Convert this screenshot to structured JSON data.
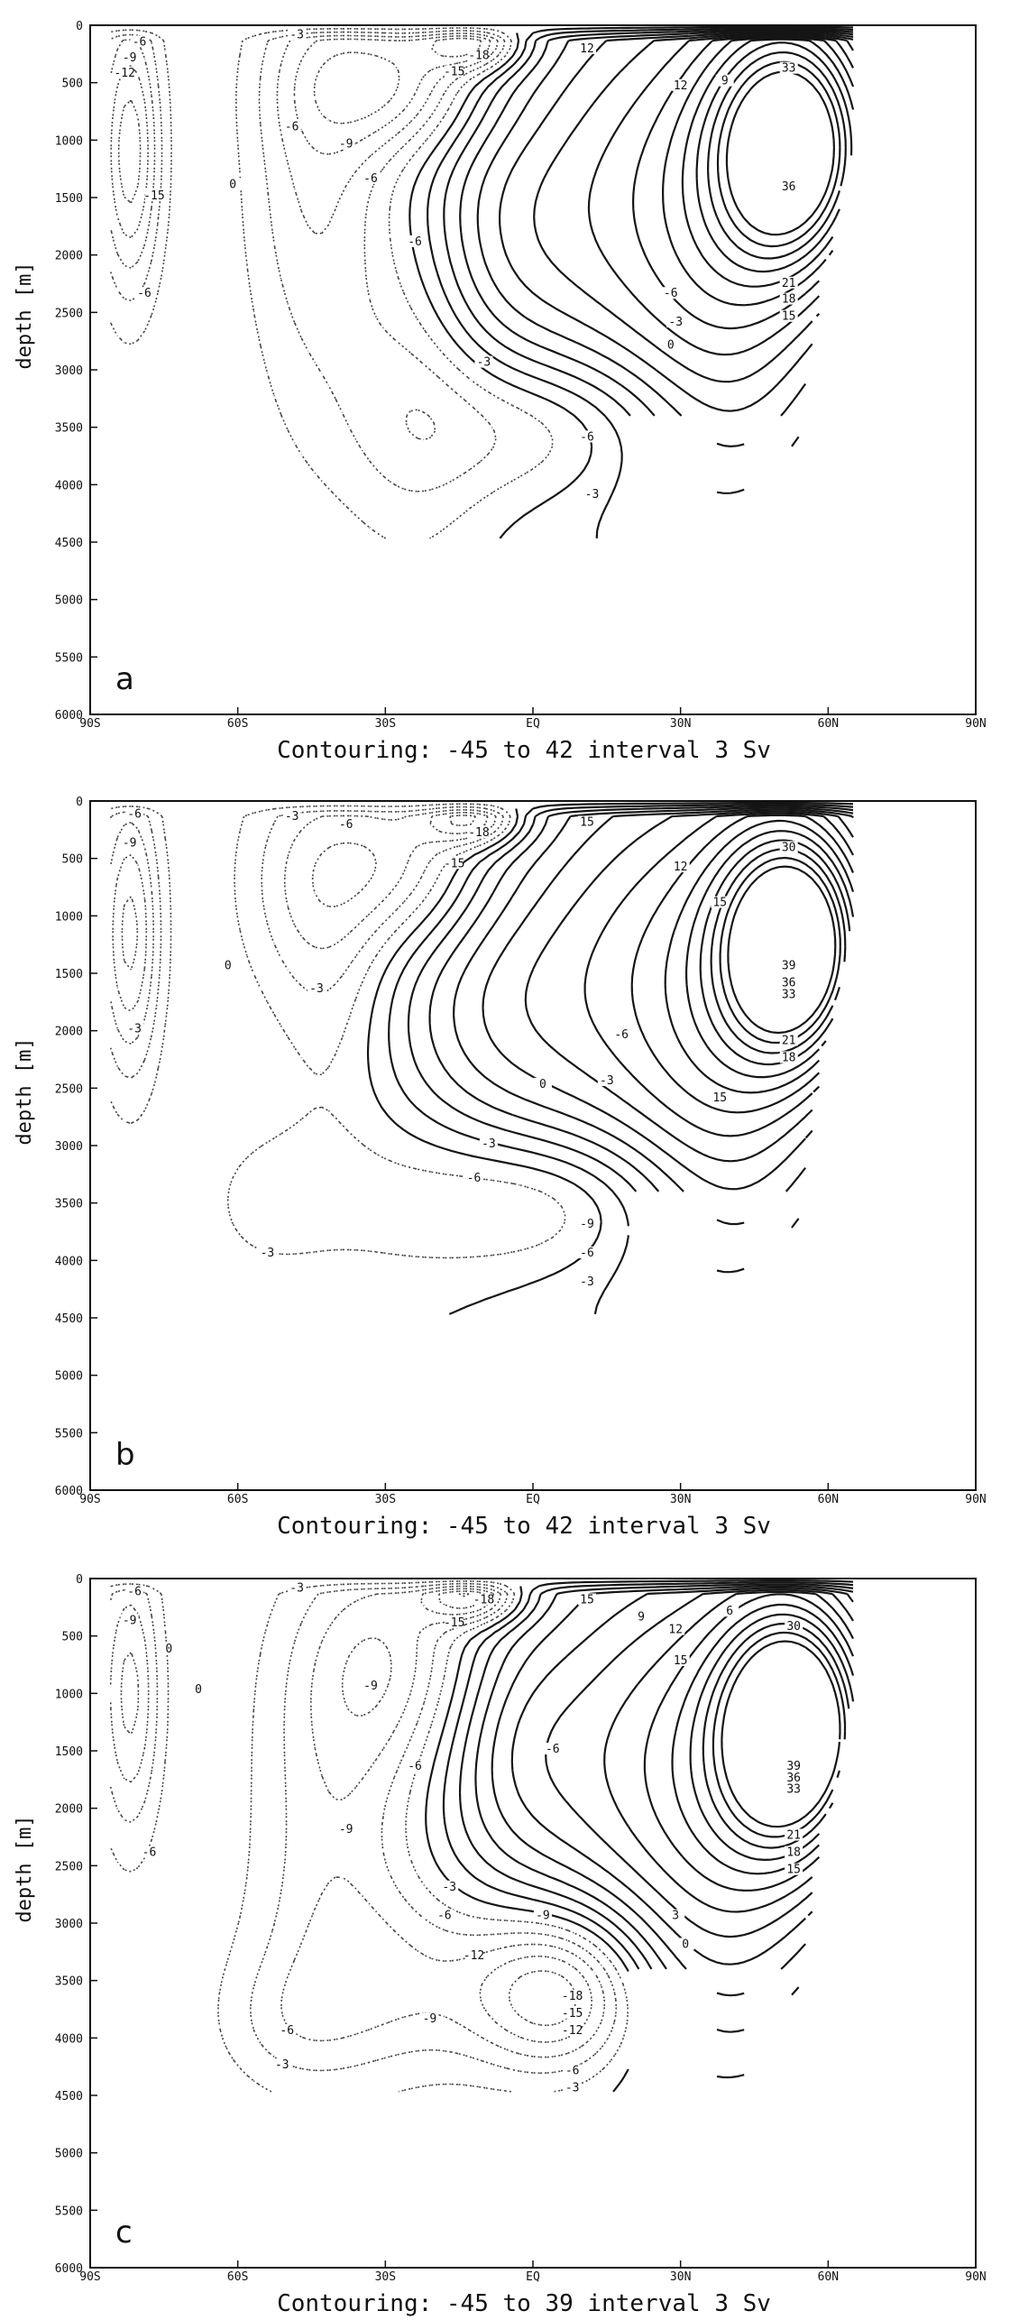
{
  "chart_data": [
    {
      "type": "contour",
      "panel_label": "a",
      "xlabel": "",
      "ylabel": "depth [m]",
      "caption": "Contouring: -45 to 42 interval 3 Sv",
      "xlim": [
        -90,
        90
      ],
      "ylim": [
        6000,
        0
      ],
      "x_ticks": [
        -90,
        -60,
        -30,
        0,
        30,
        60,
        90
      ],
      "x_tick_labels": [
        "90S",
        "60S",
        "30S",
        "EQ",
        "30N",
        "60N",
        "90N"
      ],
      "y_ticks": [
        0,
        500,
        1000,
        1500,
        2000,
        2500,
        3000,
        3500,
        4000,
        4500,
        5000,
        5500,
        6000
      ],
      "contour_min": -45,
      "contour_max": 42,
      "contour_interval": 3,
      "units": "Sv",
      "contour_labels": [
        {
          "lat": -80,
          "depth": 160,
          "value": "-6"
        },
        {
          "lat": -82,
          "depth": 300,
          "value": "-9"
        },
        {
          "lat": -83,
          "depth": 430,
          "value": "-12"
        },
        {
          "lat": -77,
          "depth": 1500,
          "value": "-15"
        },
        {
          "lat": -79,
          "depth": 2350,
          "value": "-6"
        },
        {
          "lat": -61,
          "depth": 1400,
          "value": "0"
        },
        {
          "lat": -48,
          "depth": 100,
          "value": "-3"
        },
        {
          "lat": -49,
          "depth": 900,
          "value": "-6"
        },
        {
          "lat": -38,
          "depth": 1050,
          "value": "-9"
        },
        {
          "lat": -33,
          "depth": 1350,
          "value": "-6"
        },
        {
          "lat": -16,
          "depth": 420,
          "value": "-15"
        },
        {
          "lat": -11,
          "depth": 280,
          "value": "-18"
        },
        {
          "lat": -24,
          "depth": 1900,
          "value": "-6"
        },
        {
          "lat": -10,
          "depth": 2950,
          "value": "-3"
        },
        {
          "lat": 11,
          "depth": 3600,
          "value": "-6"
        },
        {
          "lat": 12,
          "depth": 4100,
          "value": "-3"
        },
        {
          "lat": 11,
          "depth": 220,
          "value": "12"
        },
        {
          "lat": 30,
          "depth": 540,
          "value": "12"
        },
        {
          "lat": 39,
          "depth": 500,
          "value": "9"
        },
        {
          "lat": 52,
          "depth": 1420,
          "value": "36"
        },
        {
          "lat": 52,
          "depth": 390,
          "value": "33"
        },
        {
          "lat": 52,
          "depth": 2260,
          "value": "21"
        },
        {
          "lat": 52,
          "depth": 2400,
          "value": "18"
        },
        {
          "lat": 52,
          "depth": 2550,
          "value": "15"
        },
        {
          "lat": 28,
          "depth": 2350,
          "value": "-6"
        },
        {
          "lat": 29,
          "depth": 2600,
          "value": "-3"
        },
        {
          "lat": 28,
          "depth": 2800,
          "value": "0"
        }
      ]
    },
    {
      "type": "contour",
      "panel_label": "b",
      "xlabel": "",
      "ylabel": "depth [m]",
      "caption": "Contouring: -45 to 42 interval 3 Sv",
      "xlim": [
        -90,
        90
      ],
      "ylim": [
        6000,
        0
      ],
      "x_ticks": [
        -90,
        -60,
        -30,
        0,
        30,
        60,
        90
      ],
      "x_tick_labels": [
        "90S",
        "60S",
        "30S",
        "EQ",
        "30N",
        "60N",
        "90N"
      ],
      "y_ticks": [
        0,
        500,
        1000,
        1500,
        2000,
        2500,
        3000,
        3500,
        4000,
        4500,
        5000,
        5500,
        6000
      ],
      "contour_min": -45,
      "contour_max": 42,
      "contour_interval": 3,
      "units": "Sv",
      "contour_labels": [
        {
          "lat": -81,
          "depth": 130,
          "value": "-6"
        },
        {
          "lat": -82,
          "depth": 380,
          "value": "-9"
        },
        {
          "lat": -81,
          "depth": 2000,
          "value": "-3"
        },
        {
          "lat": -62,
          "depth": 1450,
          "value": "0"
        },
        {
          "lat": -49,
          "depth": 150,
          "value": "-3"
        },
        {
          "lat": -38,
          "depth": 220,
          "value": "-6"
        },
        {
          "lat": -44,
          "depth": 1650,
          "value": "-3"
        },
        {
          "lat": -16,
          "depth": 560,
          "value": "-15"
        },
        {
          "lat": -11,
          "depth": 290,
          "value": "-18"
        },
        {
          "lat": -9,
          "depth": 3000,
          "value": "-3"
        },
        {
          "lat": -12,
          "depth": 3300,
          "value": "-6"
        },
        {
          "lat": 11,
          "depth": 3700,
          "value": "-9"
        },
        {
          "lat": 11,
          "depth": 3950,
          "value": "-6"
        },
        {
          "lat": 11,
          "depth": 4200,
          "value": "-3"
        },
        {
          "lat": -54,
          "depth": 3950,
          "value": "-3"
        },
        {
          "lat": 11,
          "depth": 200,
          "value": "15"
        },
        {
          "lat": 30,
          "depth": 590,
          "value": "12"
        },
        {
          "lat": 38,
          "depth": 900,
          "value": "15"
        },
        {
          "lat": 52,
          "depth": 1450,
          "value": "39"
        },
        {
          "lat": 52,
          "depth": 1600,
          "value": "36"
        },
        {
          "lat": 52,
          "depth": 1700,
          "value": "33"
        },
        {
          "lat": 52,
          "depth": 420,
          "value": "30"
        },
        {
          "lat": 52,
          "depth": 2100,
          "value": "21"
        },
        {
          "lat": 52,
          "depth": 2250,
          "value": "18"
        },
        {
          "lat": 38,
          "depth": 2600,
          "value": "15"
        },
        {
          "lat": 18,
          "depth": 2050,
          "value": "-6"
        },
        {
          "lat": 15,
          "depth": 2450,
          "value": "-3"
        },
        {
          "lat": 2,
          "depth": 2480,
          "value": "0"
        }
      ]
    },
    {
      "type": "contour",
      "panel_label": "c",
      "xlabel": "",
      "ylabel": "depth [m]",
      "caption": "Contouring: -45 to 39 interval 3 Sv",
      "xlim": [
        -90,
        90
      ],
      "ylim": [
        6000,
        0
      ],
      "x_ticks": [
        -90,
        -60,
        -30,
        0,
        30,
        60,
        90
      ],
      "x_tick_labels": [
        "90S",
        "60S",
        "30S",
        "EQ",
        "30N",
        "60N",
        "90N"
      ],
      "y_ticks": [
        0,
        500,
        1000,
        1500,
        2000,
        2500,
        3000,
        3500,
        4000,
        4500,
        5000,
        5500,
        6000
      ],
      "contour_min": -45,
      "contour_max": 39,
      "contour_interval": 3,
      "units": "Sv",
      "contour_labels": [
        {
          "lat": -81,
          "depth": 130,
          "value": "-6"
        },
        {
          "lat": -82,
          "depth": 380,
          "value": "-9"
        },
        {
          "lat": -74,
          "depth": 630,
          "value": "0"
        },
        {
          "lat": -68,
          "depth": 980,
          "value": "0"
        },
        {
          "lat": -78,
          "depth": 2400,
          "value": "-6"
        },
        {
          "lat": -48,
          "depth": 100,
          "value": "-3"
        },
        {
          "lat": -16,
          "depth": 400,
          "value": "-15"
        },
        {
          "lat": -10,
          "depth": 200,
          "value": "-18"
        },
        {
          "lat": -33,
          "depth": 950,
          "value": "-9"
        },
        {
          "lat": -24,
          "depth": 1650,
          "value": "-6"
        },
        {
          "lat": -38,
          "depth": 2200,
          "value": "-9"
        },
        {
          "lat": -17,
          "depth": 2700,
          "value": "-3"
        },
        {
          "lat": -18,
          "depth": 2950,
          "value": "-6"
        },
        {
          "lat": 2,
          "depth": 2950,
          "value": "-9"
        },
        {
          "lat": -12,
          "depth": 3300,
          "value": "-12"
        },
        {
          "lat": -21,
          "depth": 3850,
          "value": "-9"
        },
        {
          "lat": -50,
          "depth": 3950,
          "value": "-6"
        },
        {
          "lat": -51,
          "depth": 4250,
          "value": "-3"
        },
        {
          "lat": 8,
          "depth": 3650,
          "value": "-18"
        },
        {
          "lat": 8,
          "depth": 3800,
          "value": "-15"
        },
        {
          "lat": 8,
          "depth": 3950,
          "value": "-12"
        },
        {
          "lat": 8,
          "depth": 4300,
          "value": "-6"
        },
        {
          "lat": 8,
          "depth": 4450,
          "value": "-3"
        },
        {
          "lat": 11,
          "depth": 200,
          "value": "15"
        },
        {
          "lat": 22,
          "depth": 350,
          "value": "9"
        },
        {
          "lat": 29,
          "depth": 460,
          "value": "12"
        },
        {
          "lat": 30,
          "depth": 730,
          "value": "15"
        },
        {
          "lat": 40,
          "depth": 300,
          "value": "6"
        },
        {
          "lat": 53,
          "depth": 430,
          "value": "30"
        },
        {
          "lat": 53,
          "depth": 1650,
          "value": "39"
        },
        {
          "lat": 53,
          "depth": 1750,
          "value": "36"
        },
        {
          "lat": 53,
          "depth": 1850,
          "value": "33"
        },
        {
          "lat": 53,
          "depth": 2250,
          "value": "21"
        },
        {
          "lat": 53,
          "depth": 2400,
          "value": "18"
        },
        {
          "lat": 53,
          "depth": 2550,
          "value": "15"
        },
        {
          "lat": 4,
          "depth": 1500,
          "value": "-6"
        },
        {
          "lat": 29,
          "depth": 2950,
          "value": "3"
        },
        {
          "lat": 31,
          "depth": 3200,
          "value": "0"
        }
      ]
    }
  ]
}
